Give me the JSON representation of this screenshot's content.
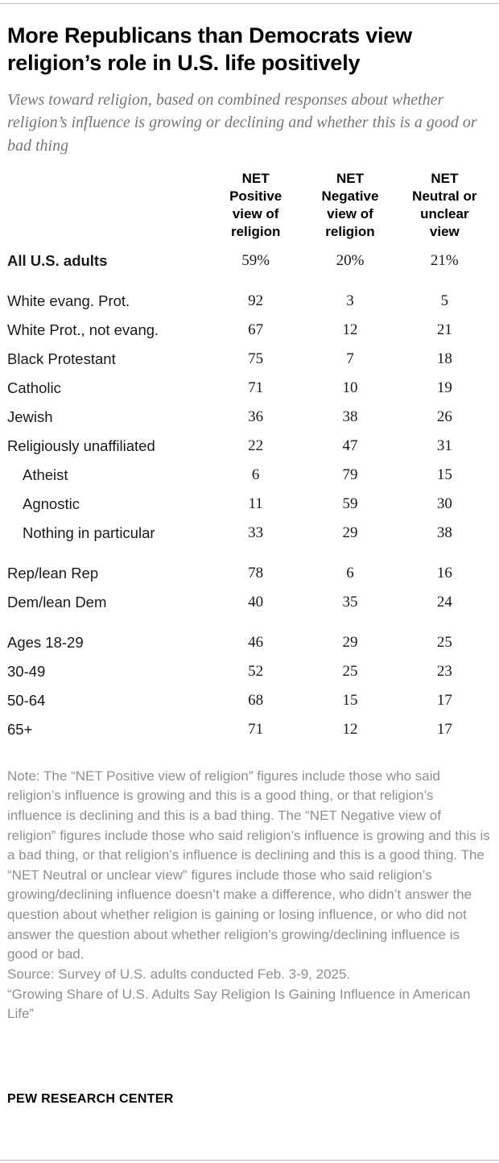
{
  "header": {
    "title": "More Republicans than Democrats view religion’s role in U.S. life positively",
    "subtitle": "Views toward religion, based on combined responses about whether religion’s influence is growing or declining and whether this is a good or bad thing"
  },
  "colors": {
    "title_black": "#000000",
    "subtitle_gray": "#757575",
    "note_gray": "#8f8f8f",
    "rule_gray": "#c4c4c4"
  },
  "chart_data": {
    "type": "table",
    "title": "More Republicans than Democrats view religion’s role in U.S. life positively",
    "subtitle": "Views toward religion, based on combined responses about whether religion’s influence is growing or declining and whether this is a good or bad thing",
    "columns": [
      "NET\nPositive\nview of\nreligion",
      "NET\nNegative\nview of\nreligion",
      "NET\nNeutral or\nunclear\nview"
    ],
    "rows": [
      {
        "label": "All U.S. adults",
        "group": "all",
        "bold": true,
        "indent": false,
        "values": [
          "59%",
          "20%",
          "21%"
        ]
      },
      {
        "label": "White evang. Prot.",
        "group": "religion",
        "bold": false,
        "indent": false,
        "values": [
          "92",
          "3",
          "5"
        ]
      },
      {
        "label": "White Prot., not evang.",
        "group": "religion",
        "bold": false,
        "indent": false,
        "values": [
          "67",
          "12",
          "21"
        ]
      },
      {
        "label": "Black Protestant",
        "group": "religion",
        "bold": false,
        "indent": false,
        "values": [
          "75",
          "7",
          "18"
        ]
      },
      {
        "label": "Catholic",
        "group": "religion",
        "bold": false,
        "indent": false,
        "values": [
          "71",
          "10",
          "19"
        ]
      },
      {
        "label": "Jewish",
        "group": "religion",
        "bold": false,
        "indent": false,
        "values": [
          "36",
          "38",
          "26"
        ]
      },
      {
        "label": "Religiously unaffiliated",
        "group": "religion",
        "bold": false,
        "indent": false,
        "values": [
          "22",
          "47",
          "31"
        ]
      },
      {
        "label": "Atheist",
        "group": "religion",
        "bold": false,
        "indent": true,
        "values": [
          "6",
          "79",
          "15"
        ]
      },
      {
        "label": "Agnostic",
        "group": "religion",
        "bold": false,
        "indent": true,
        "values": [
          "11",
          "59",
          "30"
        ]
      },
      {
        "label": "Nothing in particular",
        "group": "religion",
        "bold": false,
        "indent": true,
        "values": [
          "33",
          "29",
          "38"
        ]
      },
      {
        "label": "Rep/lean Rep",
        "group": "party",
        "bold": false,
        "indent": false,
        "values": [
          "78",
          "6",
          "16"
        ]
      },
      {
        "label": "Dem/lean Dem",
        "group": "party",
        "bold": false,
        "indent": false,
        "values": [
          "40",
          "35",
          "24"
        ]
      },
      {
        "label": "Ages 18-29",
        "group": "age",
        "bold": false,
        "indent": false,
        "values": [
          "46",
          "29",
          "25"
        ]
      },
      {
        "label": "30-49",
        "group": "age",
        "bold": false,
        "indent": false,
        "values": [
          "52",
          "25",
          "23"
        ]
      },
      {
        "label": "50-64",
        "group": "age",
        "bold": false,
        "indent": false,
        "values": [
          "68",
          "15",
          "17"
        ]
      },
      {
        "label": "65+",
        "group": "age",
        "bold": false,
        "indent": false,
        "values": [
          "71",
          "12",
          "17"
        ]
      }
    ]
  },
  "notes": {
    "note": "Note: The “NET Positive view of religion” figures include those who said religion’s influence is growing and this is a good thing, or that religion’s influence is declining and this is a bad thing. The “NET Negative view of religion” figures include those who said religion’s influence is growing and this is a bad thing, or that religion’s influence is declining and this is a good thing. The “NET Neutral or unclear view” figures include those who said religion’s growing/declining influence doesn’t make a difference, who didn’t answer the question about whether religion is gaining or losing influence, or who did not answer the question about whether religion’s growing/declining influence is good or bad.",
    "source": "Source: Survey of U.S. adults conducted Feb. 3-9, 2025.",
    "report": "“Growing Share of U.S. Adults Say Religion Is Gaining Influence in American Life”"
  },
  "footer": {
    "brand": "PEW RESEARCH CENTER"
  }
}
